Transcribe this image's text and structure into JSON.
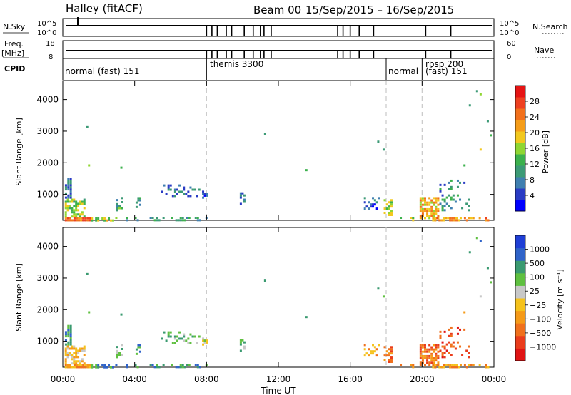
{
  "header": {
    "station": "Halley (fitACF)",
    "beam": "Beam 00",
    "dates": "15/Sep/2015 – 16/Sep/2015"
  },
  "top_panels": {
    "nsky_label": "N.Sky",
    "nsky_ticks": [
      "10^5",
      "10^0"
    ],
    "nsearch_label": "N.Search",
    "nsearch_ticks": [
      "10^5",
      "10^0"
    ],
    "freq_label": "Freq.",
    "freq_unit": "[MHz]",
    "freq_ticks": [
      "18",
      "8"
    ],
    "nave_label": "Nave",
    "nave_ticks": [
      "60",
      "0"
    ],
    "cpid_label": "CPID"
  },
  "cpid_segments": [
    {
      "label": "normal (fast) 151",
      "start_h": 0.0
    },
    {
      "label": "themis 3300",
      "start_h": 8.0
    },
    {
      "label": "normal",
      "start_h": 18.0
    },
    {
      "label": "rbsp 200",
      "start_h": 20.0
    },
    {
      "label": "(fast) 151",
      "start_h": 20.0
    }
  ],
  "colors": {
    "power": [
      "#0000ff",
      "#2a3cc4",
      "#3f7fb0",
      "#3c9a76",
      "#3cb14d",
      "#8fd632",
      "#f2c81e",
      "#f59d19",
      "#f2701c",
      "#ee4020",
      "#e61414"
    ],
    "velocity": [
      "#1f3fd6",
      "#2f63c9",
      "#3a9a70",
      "#5fc040",
      "#c8c8c8",
      "#f5c21c",
      "#f59a18",
      "#f0701c",
      "#ea3c1c",
      "#e01414"
    ]
  },
  "chart_data": [
    {
      "type": "heatmap",
      "name": "power",
      "ylabel": "Slant Range [km]",
      "yticks": [
        "1000",
        "2000",
        "3000",
        "4000"
      ],
      "xticks": [
        "00:00",
        "04:00",
        "08:00",
        "12:00",
        "16:00",
        "20:00",
        "00:00"
      ],
      "x_range_h": [
        0,
        24
      ],
      "y_range_km": [
        180,
        4600
      ],
      "colorbar_label": "Power [dB]",
      "colorbar_ticks": [
        "4",
        "8",
        "12",
        "16",
        "20",
        "24",
        "28"
      ],
      "colorbar_range": [
        0,
        30
      ]
    },
    {
      "type": "heatmap",
      "name": "velocity",
      "ylabel": "Slant Range [km]",
      "yticks": [
        "1000",
        "2000",
        "3000",
        "4000"
      ],
      "xticks": [
        "00:00",
        "04:00",
        "08:00",
        "12:00",
        "16:00",
        "20:00",
        "00:00"
      ],
      "xlabel": "Time UT",
      "x_range_h": [
        0,
        24
      ],
      "y_range_km": [
        180,
        4600
      ],
      "colorbar_label": "Velocity [m s⁻¹]",
      "colorbar_ticks": [
        "1000",
        "500",
        "100",
        "25",
        "−25",
        "−100",
        "−500",
        "−1000"
      ]
    }
  ],
  "echo_regions": [
    {
      "t0": 0.05,
      "t1": 0.45,
      "r0": 900,
      "r1": 1550,
      "p": 6,
      "v": 2,
      "d": 0.75
    },
    {
      "t0": 0.05,
      "t1": 1.2,
      "r0": 300,
      "r1": 900,
      "p": 14,
      "v": 5,
      "d": 0.55
    },
    {
      "t0": 0.05,
      "t1": 1.5,
      "r0": 180,
      "r1": 320,
      "p": 24,
      "v": 6,
      "d": 0.8
    },
    {
      "t0": 1.5,
      "t1": 2.8,
      "r0": 180,
      "r1": 300,
      "p": 16,
      "v": 2,
      "d": 0.5
    },
    {
      "t0": 2.9,
      "t1": 3.3,
      "r0": 500,
      "r1": 950,
      "p": 10,
      "v": 3,
      "d": 0.45
    },
    {
      "t0": 4.0,
      "t1": 4.3,
      "r0": 600,
      "r1": 950,
      "p": 9,
      "v": 2,
      "d": 0.5
    },
    {
      "t0": 5.4,
      "t1": 7.6,
      "r0": 950,
      "r1": 1350,
      "p": 5,
      "v": 3,
      "d": 0.35
    },
    {
      "t0": 7.7,
      "t1": 8.0,
      "r0": 900,
      "r1": 1150,
      "p": 4,
      "v": 4,
      "d": 0.45
    },
    {
      "t0": 2.5,
      "t1": 8.0,
      "r0": 180,
      "r1": 330,
      "p": 10,
      "v": 2,
      "d": 0.25
    },
    {
      "t0": 9.8,
      "t1": 10.1,
      "r0": 700,
      "r1": 1100,
      "p": 6,
      "v": 3,
      "d": 0.3
    },
    {
      "t0": 16.7,
      "t1": 17.6,
      "r0": 550,
      "r1": 950,
      "p": 5,
      "v": 6,
      "d": 0.4
    },
    {
      "t0": 17.8,
      "t1": 18.3,
      "r0": 350,
      "r1": 950,
      "p": 16,
      "v": 7,
      "d": 0.55
    },
    {
      "t0": 18.7,
      "t1": 19.5,
      "r0": 180,
      "r1": 330,
      "p": 14,
      "v": 6,
      "d": 0.35
    },
    {
      "t0": 19.8,
      "t1": 20.9,
      "r0": 250,
      "r1": 950,
      "p": 20,
      "v": 7,
      "d": 0.7
    },
    {
      "t0": 20.9,
      "t1": 22.6,
      "r0": 500,
      "r1": 1500,
      "p": 8,
      "v": 8,
      "d": 0.22
    },
    {
      "t0": 20.5,
      "t1": 23.8,
      "r0": 180,
      "r1": 320,
      "p": 22,
      "v": 6,
      "d": 0.55
    }
  ],
  "echo_points": [
    {
      "t": 1.3,
      "r": 3160,
      "p": 3,
      "v": 2
    },
    {
      "t": 1.4,
      "r": 1950,
      "p": 5,
      "v": 3
    },
    {
      "t": 3.2,
      "r": 1880,
      "p": 4,
      "v": 2
    },
    {
      "t": 11.2,
      "r": 2950,
      "p": 3,
      "v": 2
    },
    {
      "t": 13.5,
      "r": 1800,
      "p": 4,
      "v": 2
    },
    {
      "t": 17.5,
      "r": 2700,
      "p": 3,
      "v": 2
    },
    {
      "t": 17.8,
      "r": 2450,
      "p": 3,
      "v": 3
    },
    {
      "t": 22.3,
      "r": 1950,
      "p": 4,
      "v": 6
    },
    {
      "t": 22.6,
      "r": 3850,
      "p": 3,
      "v": 2
    },
    {
      "t": 23.0,
      "r": 4300,
      "p": 3,
      "v": 3
    },
    {
      "t": 23.2,
      "r": 4200,
      "p": 5,
      "v": 1
    },
    {
      "t": 23.6,
      "r": 3350,
      "p": 3,
      "v": 2
    },
    {
      "t": 23.8,
      "r": 2900,
      "p": 4,
      "v": 3
    },
    {
      "t": 23.2,
      "r": 2450,
      "p": 6,
      "v": 4
    }
  ],
  "dropouts_h": [
    8.0,
    8.3,
    8.6,
    9.1,
    9.4,
    10.1,
    10.6,
    11.0,
    11.2,
    11.6,
    15.3,
    15.6,
    16.0,
    16.5,
    17.3,
    20.2,
    21.6
  ]
}
